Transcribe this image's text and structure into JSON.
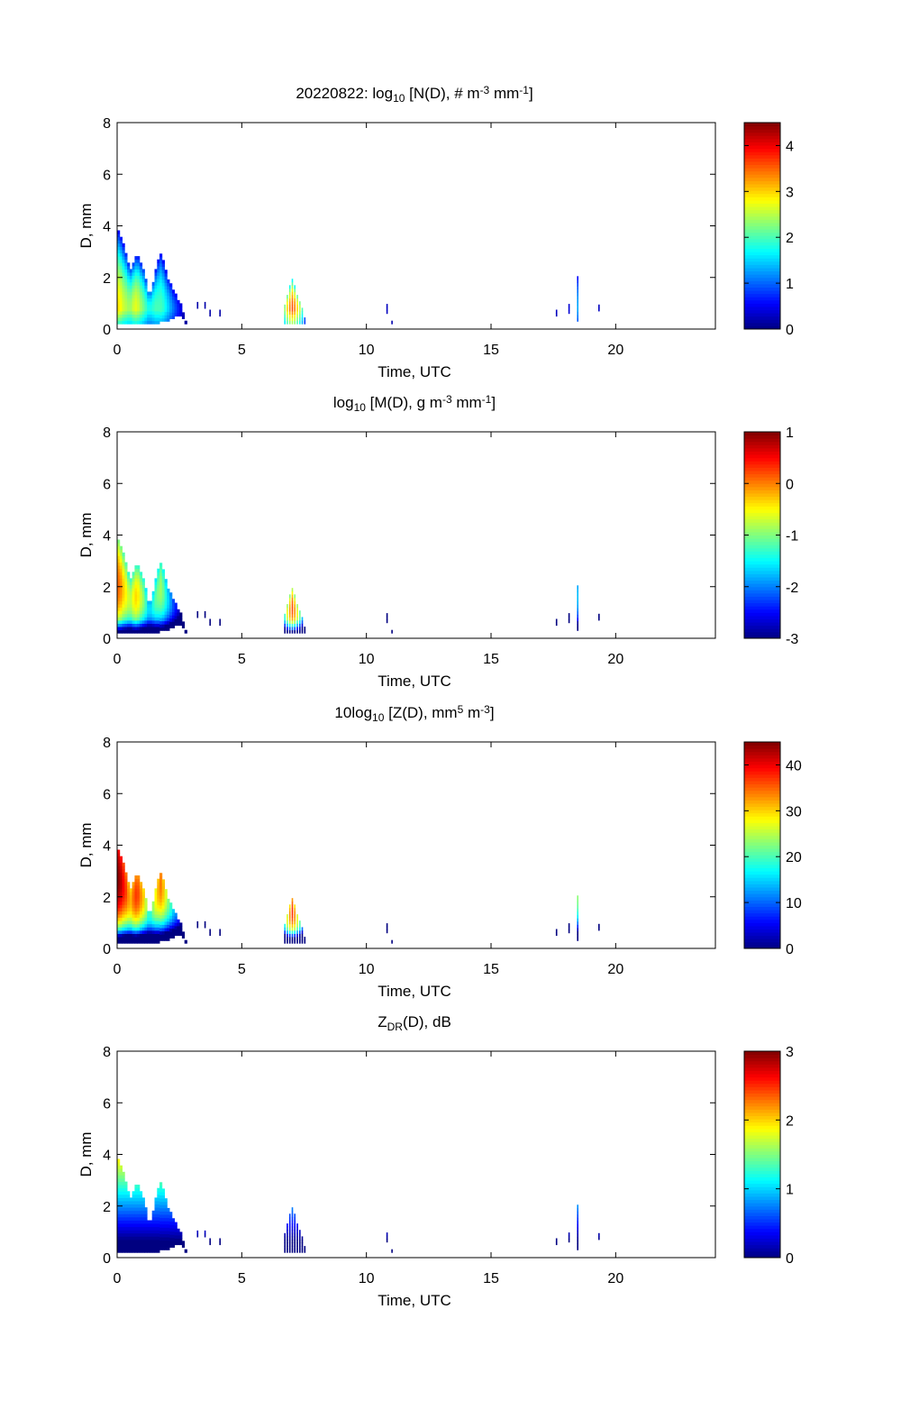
{
  "chart_data": [
    {
      "type": "heatmap",
      "id": "nd",
      "title_parts": [
        {
          "t": "20220822: log"
        },
        {
          "sub": "10"
        },
        {
          "t": " [N(D), # m"
        },
        {
          "sup": "-3"
        },
        {
          "t": " mm"
        },
        {
          "sup": "-1"
        },
        {
          "t": "]"
        }
      ],
      "xlabel": "Time, UTC",
      "ylabel": "D, mm",
      "xlim": [
        0,
        24
      ],
      "ylim": [
        0,
        8
      ],
      "xticks": [
        0,
        5,
        10,
        15,
        20
      ],
      "yticks": [
        0,
        2,
        4,
        6,
        8
      ],
      "clim": [
        0,
        4.5
      ],
      "cticks": [
        0,
        1,
        2,
        3,
        4
      ],
      "colormap": "jet"
    },
    {
      "type": "heatmap",
      "id": "md",
      "title_parts": [
        {
          "t": "log"
        },
        {
          "sub": "10"
        },
        {
          "t": " [M(D), g m"
        },
        {
          "sup": "-3"
        },
        {
          "t": " mm"
        },
        {
          "sup": "-1"
        },
        {
          "t": "]"
        }
      ],
      "xlabel": "Time, UTC",
      "ylabel": "D, mm",
      "xlim": [
        0,
        24
      ],
      "ylim": [
        0,
        8
      ],
      "xticks": [
        0,
        5,
        10,
        15,
        20
      ],
      "yticks": [
        0,
        2,
        4,
        6,
        8
      ],
      "clim": [
        -3,
        1
      ],
      "cticks": [
        -3,
        -2,
        -1,
        0,
        1
      ],
      "colormap": "jet"
    },
    {
      "type": "heatmap",
      "id": "zd",
      "title_parts": [
        {
          "t": "10log"
        },
        {
          "sub": "10"
        },
        {
          "t": " [Z(D),  mm"
        },
        {
          "sup": "5"
        },
        {
          "t": " m"
        },
        {
          "sup": "-3"
        },
        {
          "t": "]"
        }
      ],
      "xlabel": "Time, UTC",
      "ylabel": "D, mm",
      "xlim": [
        0,
        24
      ],
      "ylim": [
        0,
        8
      ],
      "xticks": [
        0,
        5,
        10,
        15,
        20
      ],
      "yticks": [
        0,
        2,
        4,
        6,
        8
      ],
      "clim": [
        0,
        45
      ],
      "cticks": [
        0,
        10,
        20,
        30,
        40
      ],
      "colormap": "jet"
    },
    {
      "type": "heatmap",
      "id": "zdr",
      "title_parts": [
        {
          "t": "Z"
        },
        {
          "sub": "DR"
        },
        {
          "t": "(D), dB"
        }
      ],
      "xlabel": "Time, UTC",
      "ylabel": "D, mm",
      "xlim": [
        0,
        24
      ],
      "ylim": [
        0,
        8
      ],
      "xticks": [
        0,
        5,
        10,
        15,
        20
      ],
      "yticks": [
        0,
        2,
        4,
        6,
        8
      ],
      "clim": [
        0,
        3
      ],
      "cticks": [
        0,
        1,
        2,
        3
      ],
      "colormap": "jet"
    }
  ],
  "observations": {
    "time_bin_h": 0.1,
    "d_bin_mm": 0.125,
    "columns_t_dmin_dmax_logN": [
      [
        0.0,
        0.2,
        3.7,
        2.9
      ],
      [
        0.1,
        0.2,
        3.5,
        2.8
      ],
      [
        0.2,
        0.2,
        3.2,
        2.6
      ],
      [
        0.3,
        0.2,
        2.9,
        2.5
      ],
      [
        0.4,
        0.2,
        2.5,
        2.4
      ],
      [
        0.5,
        0.2,
        2.3,
        2.4
      ],
      [
        0.6,
        0.2,
        2.5,
        2.6
      ],
      [
        0.7,
        0.2,
        2.7,
        2.7
      ],
      [
        0.8,
        0.2,
        2.7,
        2.6
      ],
      [
        0.9,
        0.2,
        2.5,
        2.4
      ],
      [
        1.0,
        0.2,
        2.3,
        2.2
      ],
      [
        1.1,
        0.2,
        1.9,
        2.0
      ],
      [
        1.2,
        0.2,
        1.4,
        1.8
      ],
      [
        1.3,
        0.2,
        1.4,
        1.8
      ],
      [
        1.4,
        0.2,
        1.8,
        1.9
      ],
      [
        1.5,
        0.2,
        2.2,
        2.0
      ],
      [
        1.6,
        0.2,
        2.6,
        2.0
      ],
      [
        1.7,
        0.3,
        2.9,
        2.0
      ],
      [
        1.8,
        0.3,
        2.6,
        1.9
      ],
      [
        1.9,
        0.3,
        2.2,
        1.7
      ],
      [
        2.0,
        0.3,
        1.9,
        1.5
      ],
      [
        2.1,
        0.4,
        1.7,
        1.3
      ],
      [
        2.2,
        0.4,
        1.4,
        1.1
      ],
      [
        2.3,
        0.5,
        1.3,
        0.9
      ],
      [
        2.4,
        0.5,
        1.1,
        0.7
      ],
      [
        2.5,
        0.5,
        0.9,
        0.5
      ],
      [
        2.6,
        0.4,
        0.6,
        0.3
      ],
      [
        2.7,
        0.2,
        0.3,
        0.2
      ],
      [
        3.2,
        0.8,
        1.0,
        0.2
      ],
      [
        3.5,
        0.8,
        1.0,
        0.2
      ],
      [
        3.7,
        0.5,
        0.7,
        0.2
      ],
      [
        4.1,
        0.5,
        0.7,
        0.2
      ],
      [
        6.7,
        0.2,
        0.9,
        2.4
      ],
      [
        6.8,
        0.2,
        1.3,
        3.0
      ],
      [
        6.9,
        0.2,
        1.6,
        3.4
      ],
      [
        7.0,
        0.2,
        1.9,
        3.6
      ],
      [
        7.1,
        0.2,
        1.6,
        3.4
      ],
      [
        7.2,
        0.2,
        1.3,
        3.0
      ],
      [
        7.3,
        0.2,
        1.0,
        2.6
      ],
      [
        7.4,
        0.2,
        0.7,
        2.0
      ],
      [
        7.5,
        0.2,
        0.4,
        1.2
      ],
      [
        10.8,
        0.6,
        0.9,
        0.3
      ],
      [
        11.0,
        0.2,
        0.3,
        0.3
      ],
      [
        17.6,
        0.5,
        0.7,
        0.3
      ],
      [
        18.1,
        0.6,
        0.9,
        0.4
      ],
      [
        18.45,
        0.3,
        2.0,
        1.3
      ],
      [
        19.3,
        0.7,
        0.9,
        0.3
      ]
    ]
  }
}
